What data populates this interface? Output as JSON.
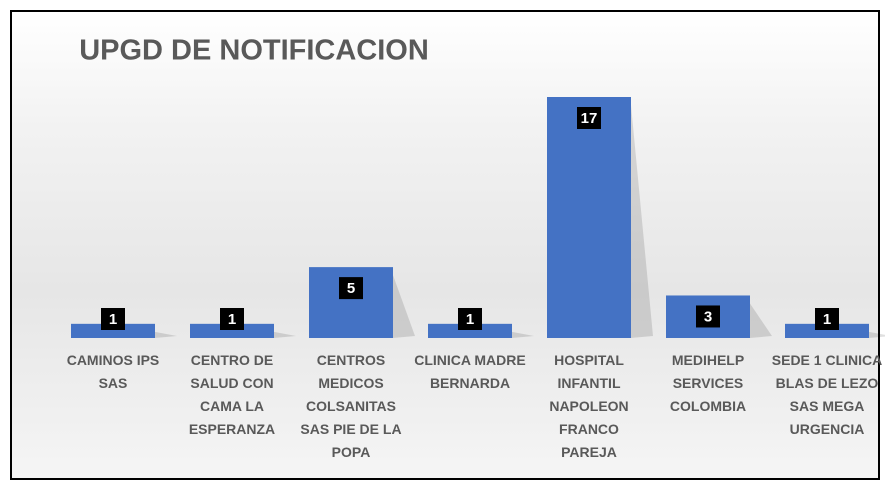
{
  "chart_data": {
    "type": "bar",
    "title": "UPGD DE NOTIFICACION",
    "categories": [
      "CAMINOS IPS SAS",
      "CENTRO DE SALUD CON CAMA LA ESPERANZA",
      "CENTROS MEDICOS COLSANITAS SAS PIE DE LA POPA",
      "CLINICA MADRE BERNARDA",
      "HOSPITAL INFANTIL NAPOLEON FRANCO PAREJA",
      "MEDIHELP SERVICES COLOMBIA",
      "SEDE 1 CLINICA BLAS DE LEZO SAS MEGA URGENCIA"
    ],
    "values": [
      1,
      1,
      5,
      1,
      17,
      3,
      1
    ],
    "color": "#4472c4"
  }
}
